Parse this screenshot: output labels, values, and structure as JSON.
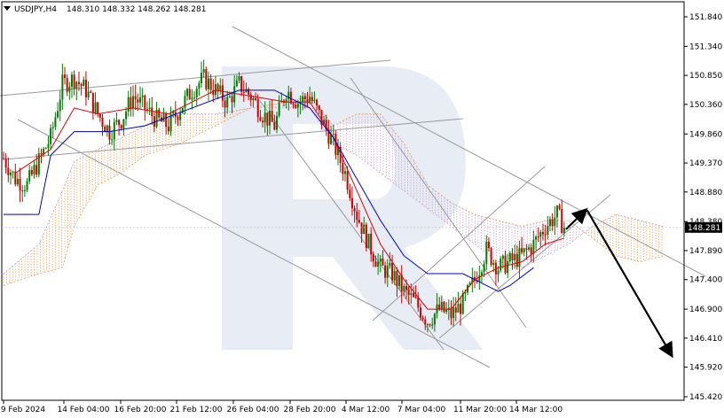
{
  "header": {
    "symbol": "USDJPY,H4",
    "ohlc": "148.310 148.332 148.262 148.281"
  },
  "colors": {
    "bull": "#008000",
    "bear": "#d00000",
    "tenkan": "#e00000",
    "kijun": "#0000cc",
    "cloud_a": "#f0a050",
    "cloud_b": "#c8a0d0",
    "trendline": "#999999",
    "forecast": "#000000",
    "price_tag_bg": "#000000",
    "watermark": "#d8e0ec"
  },
  "chart_data": {
    "type": "candlestick",
    "ylim": [
      145.42,
      152.0
    ],
    "x": [
      "9 Feb 2024",
      "14 Feb 04:00",
      "16 Feb 20:00",
      "21 Feb 12:00",
      "26 Feb 04:00",
      "28 Feb 20:00",
      "4 Mar 12:00",
      "7 Mar 04:00",
      "11 Mar 20:00",
      "14 Mar 12:00"
    ],
    "y_ticks": [
      "151.840",
      "151.340",
      "150.850",
      "150.360",
      "149.860",
      "149.370",
      "148.880",
      "148.380",
      "147.890",
      "147.400",
      "146.900",
      "146.410",
      "145.920",
      "145.420"
    ],
    "y_tick_values": [
      151.84,
      151.34,
      150.85,
      150.36,
      149.86,
      149.37,
      148.88,
      148.38,
      147.89,
      147.4,
      146.9,
      146.41,
      145.92,
      145.42
    ],
    "last_price": "148.281",
    "last_price_value": 148.281,
    "price_path": [
      [
        0,
        149.45
      ],
      [
        5,
        149.1
      ],
      [
        10,
        149.0
      ],
      [
        15,
        149.4
      ],
      [
        20,
        149.8
      ],
      [
        25,
        150.7
      ],
      [
        30,
        150.8
      ],
      [
        35,
        150.6
      ],
      [
        40,
        150.2
      ],
      [
        45,
        149.9
      ],
      [
        50,
        150.1
      ],
      [
        55,
        150.5
      ],
      [
        60,
        150.3
      ],
      [
        65,
        150.1
      ],
      [
        70,
        150.0
      ],
      [
        75,
        150.3
      ],
      [
        80,
        150.6
      ],
      [
        85,
        150.8
      ],
      [
        90,
        150.6
      ],
      [
        95,
        150.4
      ],
      [
        100,
        150.7
      ],
      [
        105,
        150.5
      ],
      [
        110,
        150.2
      ],
      [
        115,
        150.0
      ],
      [
        120,
        150.6
      ],
      [
        125,
        150.4
      ],
      [
        130,
        150.5
      ],
      [
        135,
        150.1
      ],
      [
        140,
        149.7
      ],
      [
        145,
        149.2
      ],
      [
        150,
        148.5
      ],
      [
        155,
        148.0
      ],
      [
        160,
        147.6
      ],
      [
        165,
        147.5
      ],
      [
        170,
        147.2
      ],
      [
        175,
        147.0
      ],
      [
        180,
        146.7
      ],
      [
        185,
        146.9
      ],
      [
        190,
        146.8
      ],
      [
        195,
        147.0
      ],
      [
        200,
        147.4
      ],
      [
        205,
        147.9
      ],
      [
        210,
        147.6
      ],
      [
        215,
        147.7
      ],
      [
        220,
        147.8
      ],
      [
        225,
        148.0
      ],
      [
        230,
        148.3
      ],
      [
        235,
        148.5
      ],
      [
        238,
        148.28
      ]
    ],
    "tenkan": [
      [
        5,
        149.2
      ],
      [
        20,
        149.6
      ],
      [
        30,
        150.3
      ],
      [
        40,
        150.2
      ],
      [
        55,
        150.3
      ],
      [
        70,
        150.2
      ],
      [
        90,
        150.6
      ],
      [
        105,
        150.5
      ],
      [
        120,
        150.4
      ],
      [
        130,
        150.4
      ],
      [
        140,
        149.8
      ],
      [
        150,
        148.9
      ],
      [
        160,
        148.0
      ],
      [
        170,
        147.4
      ],
      [
        180,
        146.9
      ],
      [
        190,
        146.9
      ],
      [
        200,
        147.4
      ],
      [
        210,
        147.6
      ],
      [
        220,
        147.7
      ],
      [
        230,
        148.0
      ],
      [
        238,
        148.1
      ]
    ],
    "kijun": [
      [
        0,
        148.5
      ],
      [
        15,
        148.5
      ],
      [
        20,
        149.5
      ],
      [
        30,
        149.9
      ],
      [
        45,
        149.9
      ],
      [
        60,
        150.0
      ],
      [
        80,
        150.3
      ],
      [
        100,
        150.6
      ],
      [
        115,
        150.6
      ],
      [
        130,
        150.3
      ],
      [
        140,
        149.8
      ],
      [
        150,
        149.1
      ],
      [
        160,
        148.4
      ],
      [
        170,
        147.8
      ],
      [
        180,
        147.5
      ],
      [
        195,
        147.5
      ],
      [
        200,
        147.4
      ],
      [
        210,
        147.2
      ],
      [
        215,
        147.3
      ],
      [
        225,
        147.6
      ]
    ],
    "cloud": {
      "span_a": [
        [
          0,
          147.3
        ],
        [
          15,
          147.5
        ],
        [
          25,
          147.6
        ],
        [
          30,
          148.3
        ],
        [
          40,
          149.0
        ],
        [
          50,
          149.2
        ],
        [
          60,
          149.5
        ],
        [
          75,
          149.7
        ],
        [
          90,
          150.0
        ],
        [
          105,
          150.3
        ],
        [
          120,
          150.4
        ],
        [
          130,
          150.5
        ],
        [
          140,
          150.0
        ],
        [
          150,
          150.2
        ],
        [
          160,
          150.2
        ],
        [
          170,
          149.7
        ],
        [
          180,
          149.0
        ],
        [
          190,
          148.7
        ],
        [
          200,
          148.5
        ],
        [
          210,
          148.4
        ],
        [
          220,
          148.3
        ],
        [
          230,
          148.4
        ],
        [
          240,
          148.4
        ],
        [
          250,
          148.1
        ],
        [
          260,
          147.8
        ],
        [
          270,
          147.7
        ],
        [
          280,
          147.8
        ]
      ],
      "span_b": [
        [
          0,
          147.5
        ],
        [
          15,
          148.0
        ],
        [
          25,
          148.9
        ],
        [
          30,
          149.4
        ],
        [
          40,
          149.6
        ],
        [
          50,
          149.8
        ],
        [
          60,
          150.0
        ],
        [
          75,
          150.2
        ],
        [
          90,
          150.2
        ],
        [
          105,
          150.3
        ],
        [
          120,
          150.3
        ],
        [
          130,
          150.3
        ],
        [
          140,
          149.7
        ],
        [
          150,
          149.5
        ],
        [
          160,
          149.2
        ],
        [
          170,
          148.9
        ],
        [
          180,
          148.6
        ],
        [
          190,
          148.3
        ],
        [
          200,
          148.0
        ],
        [
          210,
          147.7
        ],
        [
          220,
          147.6
        ],
        [
          230,
          147.8
        ],
        [
          240,
          148.0
        ],
        [
          250,
          148.3
        ],
        [
          260,
          148.5
        ],
        [
          270,
          148.4
        ],
        [
          280,
          148.3
        ]
      ]
    },
    "forecast": [
      [
        238,
        148.28
      ],
      [
        247,
        148.6
      ],
      [
        283,
        146.1
      ]
    ]
  }
}
